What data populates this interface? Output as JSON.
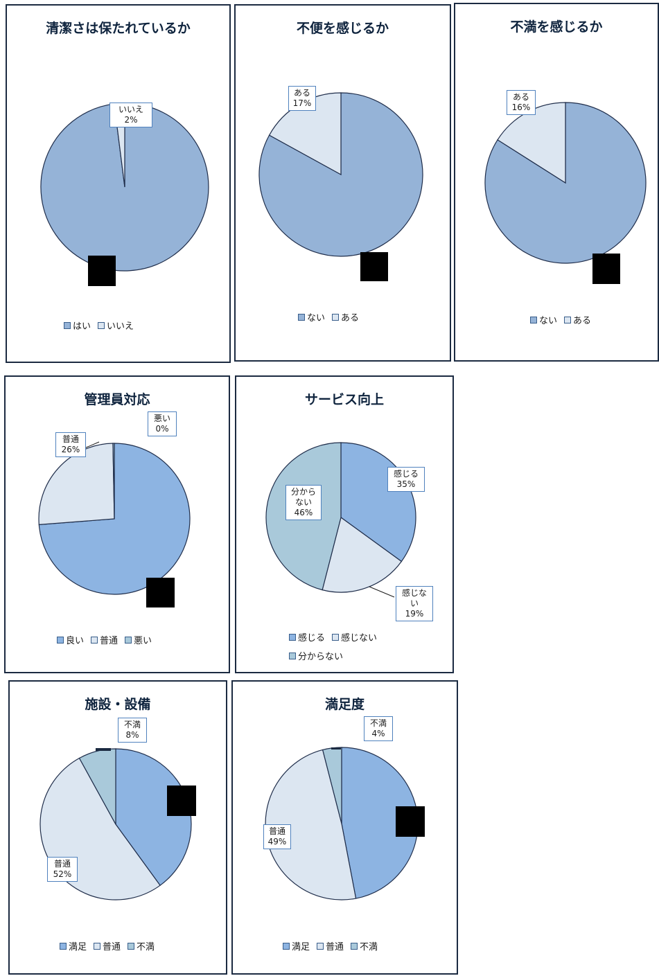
{
  "colors": {
    "yes_blue": "#95b3d7",
    "light": "#dce6f1",
    "bright_blue": "#8db4e2",
    "teal": "#a9c9da",
    "pie_border": "#1f2d4a",
    "label_border": "#4f81bd",
    "title": "#0f243e"
  },
  "chart_data": [
    {
      "type": "pie",
      "title": "清潔さは保たれているか",
      "legend": [
        "はい",
        "いいえ"
      ],
      "slices": [
        {
          "label": "はい",
          "value": 98,
          "pct": "",
          "color": "#95b3d7"
        },
        {
          "label": "いいえ",
          "value": 2,
          "pct": "2%",
          "color": "#dce6f1"
        }
      ]
    },
    {
      "type": "pie",
      "title": "不便を感じるか",
      "legend": [
        "ない",
        "ある"
      ],
      "slices": [
        {
          "label": "ない",
          "value": 83,
          "pct": "",
          "color": "#95b3d7"
        },
        {
          "label": "ある",
          "value": 17,
          "pct": "17%",
          "color": "#dce6f1"
        }
      ]
    },
    {
      "type": "pie",
      "title": "不満を感じるか",
      "legend": [
        "ない",
        "ある"
      ],
      "slices": [
        {
          "label": "ない",
          "value": 84,
          "pct": "",
          "color": "#95b3d7"
        },
        {
          "label": "ある",
          "value": 16,
          "pct": "16%",
          "color": "#dce6f1"
        }
      ]
    },
    {
      "type": "pie",
      "title": "管理員対応",
      "legend": [
        "良い",
        "普通",
        "悪い"
      ],
      "slices": [
        {
          "label": "良い",
          "value": 74,
          "pct": "",
          "color": "#8db4e2"
        },
        {
          "label": "普通",
          "value": 26,
          "pct": "26%",
          "color": "#dce6f1"
        },
        {
          "label": "悪い",
          "value": 0.3,
          "pct": "0%",
          "color": "#a9c9da"
        }
      ]
    },
    {
      "type": "pie",
      "title": "サービス向上",
      "legend": [
        "感じる",
        "感じない",
        "分からない"
      ],
      "slices": [
        {
          "label": "感じる",
          "value": 35,
          "pct": "35%",
          "color": "#8db4e2"
        },
        {
          "label": "感じない",
          "value": 19,
          "pct": "19%",
          "color": "#dce6f1"
        },
        {
          "label": "分からない",
          "value": 46,
          "pct": "46%",
          "color": "#a9c9da"
        }
      ]
    },
    {
      "type": "pie",
      "title": "施設・設備",
      "legend": [
        "満足",
        "普通",
        "不満"
      ],
      "slices": [
        {
          "label": "満足",
          "value": 40,
          "pct": "",
          "color": "#8db4e2"
        },
        {
          "label": "普通",
          "value": 52,
          "pct": "52%",
          "color": "#dce6f1"
        },
        {
          "label": "不満",
          "value": 8,
          "pct": "8%",
          "color": "#a9c9da"
        }
      ]
    },
    {
      "type": "pie",
      "title": "満足度",
      "legend": [
        "満足",
        "普通",
        "不満"
      ],
      "slices": [
        {
          "label": "満足",
          "value": 47,
          "pct": "",
          "color": "#8db4e2"
        },
        {
          "label": "普通",
          "value": 49,
          "pct": "49%",
          "color": "#dce6f1"
        },
        {
          "label": "不満",
          "value": 4,
          "pct": "4%",
          "color": "#a9c9da"
        }
      ]
    }
  ]
}
